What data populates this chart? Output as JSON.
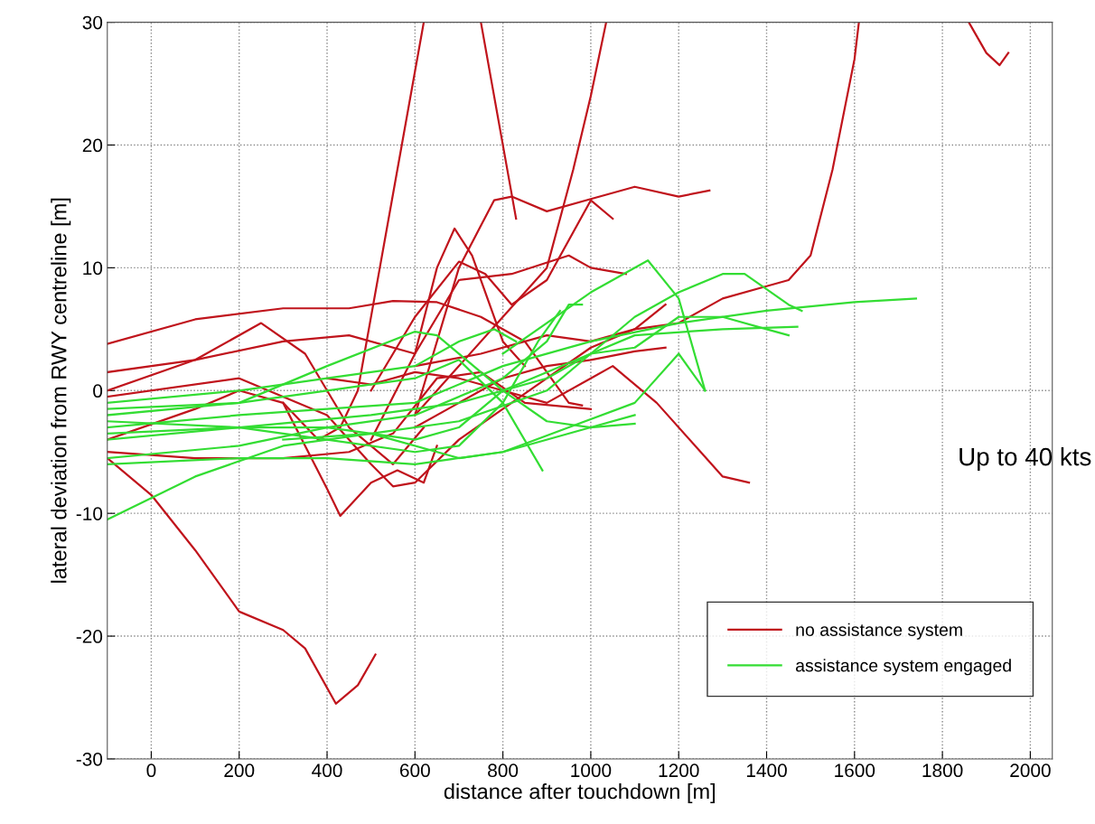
{
  "chart_data": {
    "type": "line",
    "xlabel": "distance after touchdown [m]",
    "ylabel": "lateral deviation from RWY centreline [m]",
    "xlim": [
      -100,
      2050
    ],
    "xticks": [
      0,
      200,
      400,
      600,
      800,
      1000,
      1200,
      1400,
      1600,
      1800,
      2000
    ],
    "ylim": [
      -30,
      30
    ],
    "yticks": [
      -30,
      -20,
      -10,
      0,
      10,
      20,
      30
    ],
    "grid": true,
    "legend": "bottom right",
    "annotations": [
      "Up to 40 kts"
    ],
    "series": [
      {
        "name": "no assistance system",
        "color": "#c0141c",
        "x": [
          -100,
          0,
          100,
          200,
          300,
          350,
          420,
          470,
          510
        ],
        "values": [
          -5.5,
          -8.5,
          -13,
          -18,
          -19.5,
          -21,
          -25.5,
          -24,
          -21.5
        ]
      },
      {
        "color": "#c0141c",
        "x": [
          300,
          380,
          430,
          470,
          520,
          570,
          620
        ],
        "values": [
          -1,
          -4,
          -3,
          0,
          10,
          20,
          30
        ]
      },
      {
        "color": "#c0141c",
        "x": [
          750,
          790,
          830
        ],
        "values": [
          30,
          22,
          14
        ]
      },
      {
        "color": "#c0141c",
        "x": [
          600,
          700,
          800,
          900,
          960,
          1000,
          1035
        ],
        "values": [
          -2,
          2,
          6,
          10,
          18,
          24,
          30
        ]
      },
      {
        "color": "#c0141c",
        "x": [
          600,
          750,
          900,
          1000,
          1100,
          1200,
          1300,
          1400,
          1450,
          1500,
          1550,
          1600,
          1610
        ],
        "values": [
          2,
          3,
          4.5,
          4,
          5,
          5.5,
          7.5,
          8.5,
          9,
          11,
          18,
          27,
          30
        ]
      },
      {
        "color": "#c0141c",
        "x": [
          1860,
          1900,
          1930,
          1950
        ],
        "values": [
          30,
          27.5,
          26.5,
          27.5
        ]
      },
      {
        "color": "#c0141c",
        "x": [
          -100,
          100,
          300,
          450,
          550,
          650,
          750,
          850,
          950,
          980
        ],
        "values": [
          3.8,
          5.8,
          6.7,
          6.7,
          7.3,
          7.2,
          6,
          4,
          -1,
          -1.2
        ]
      },
      {
        "color": "#c0141c",
        "x": [
          600,
          700,
          780,
          820,
          900,
          1000,
          1100,
          1200,
          1270
        ],
        "values": [
          -2,
          10,
          15.5,
          15.8,
          14.6,
          15.6,
          16.6,
          15.8,
          16.3
        ]
      },
      {
        "color": "#c0141c",
        "x": [
          500,
          600,
          650,
          690,
          730,
          800,
          850
        ],
        "values": [
          -4,
          3,
          10,
          13.2,
          11,
          4,
          2
        ]
      },
      {
        "color": "#c0141c",
        "x": [
          500,
          600,
          700,
          760,
          820,
          900,
          1000,
          1050
        ],
        "values": [
          0,
          6,
          10.5,
          9.5,
          7,
          9,
          15.5,
          14
        ]
      },
      {
        "color": "#c0141c",
        "x": [
          -100,
          100,
          250,
          350,
          450,
          550,
          620
        ],
        "values": [
          1.5,
          2.5,
          5.5,
          3,
          -3,
          -6,
          -3
        ]
      },
      {
        "color": "#c0141c",
        "x": [
          -100,
          100,
          300,
          450,
          600,
          700,
          820,
          950,
          1000,
          1080
        ],
        "values": [
          0,
          2.5,
          4,
          4.5,
          3,
          9,
          9.5,
          11,
          10,
          9.5
        ]
      },
      {
        "color": "#c0141c",
        "x": [
          -100,
          100,
          300,
          450,
          550,
          650,
          750,
          850,
          1000
        ],
        "values": [
          -5,
          -5.5,
          -5.5,
          -5,
          -3.5,
          1,
          1.5,
          -1,
          -1.5
        ]
      },
      {
        "color": "#c0141c",
        "x": [
          400,
          500,
          600,
          700,
          800,
          900,
          1000,
          1050,
          1150,
          1250,
          1300,
          1360
        ],
        "values": [
          1,
          0.5,
          1.5,
          1,
          0,
          -1,
          1,
          2,
          -1,
          -5,
          -7,
          -7.5
        ]
      },
      {
        "color": "#c0141c",
        "x": [
          600,
          700,
          800,
          900,
          1000,
          1100,
          1170
        ],
        "values": [
          -3,
          -1,
          1,
          2,
          2.5,
          3.2,
          3.5
        ]
      },
      {
        "color": "#c0141c",
        "x": [
          -100,
          100,
          200,
          300,
          400,
          430,
          500,
          560,
          620,
          650
        ],
        "values": [
          -4,
          -1.5,
          0,
          -1,
          -8,
          -10.2,
          -7.5,
          -6.5,
          -7.5,
          -4.5
        ]
      },
      {
        "color": "#c0141c",
        "x": [
          -100,
          200,
          400,
          500,
          550,
          600,
          700,
          900,
          1000,
          1100,
          1170
        ],
        "values": [
          -0.5,
          1,
          -2,
          -6,
          -7.8,
          -7.5,
          -4,
          1,
          3.5,
          5,
          7
        ]
      },
      {
        "name": "assistance system engaged",
        "color": "#33dd33",
        "x": [
          -100,
          100,
          300,
          500,
          700,
          900,
          1000,
          1100,
          1200,
          1300,
          1350,
          1450,
          1480
        ],
        "values": [
          -10.5,
          -7,
          -4.5,
          -3.5,
          -2.5,
          0,
          3,
          6,
          8,
          9.5,
          9.5,
          7,
          6.5
        ]
      },
      {
        "color": "#33dd33",
        "x": [
          -100,
          200,
          400,
          600,
          800,
          950,
          1100,
          1200,
          1260
        ],
        "values": [
          -6,
          -5.5,
          -5.5,
          -6,
          -5,
          -3,
          -1,
          3,
          0
        ]
      },
      {
        "color": "#33dd33",
        "x": [
          800,
          1000,
          1130,
          1200,
          1260
        ],
        "values": [
          3,
          8,
          10.6,
          7.5,
          0
        ]
      },
      {
        "color": "#33dd33",
        "x": [
          -100,
          200,
          400,
          600,
          650,
          800,
          900,
          1000,
          1100
        ],
        "values": [
          -2,
          -1,
          2,
          4.8,
          4.5,
          0,
          -2.5,
          -3,
          -2.7
        ]
      },
      {
        "color": "#33dd33",
        "x": [
          -100,
          200,
          400,
          600,
          800,
          1000,
          1200,
          1400,
          1600,
          1740
        ],
        "values": [
          -3,
          -2,
          -1.5,
          -1,
          2,
          4,
          5.5,
          6.5,
          7.2,
          7.5
        ]
      },
      {
        "color": "#33dd33",
        "x": [
          -100,
          200,
          400,
          600,
          700,
          800,
          900,
          1000,
          1100,
          1300,
          1470
        ],
        "values": [
          -4,
          -3,
          -3,
          -4,
          -3,
          0,
          1.5,
          3,
          4.5,
          5,
          5.2
        ]
      },
      {
        "color": "#33dd33",
        "x": [
          -100,
          200,
          400,
          600,
          700,
          800,
          890
        ],
        "values": [
          -1.5,
          -1,
          0,
          1,
          2.5,
          -1,
          -6.5
        ]
      },
      {
        "color": "#33dd33",
        "x": [
          -100,
          200,
          400,
          600,
          800,
          900,
          950,
          980
        ],
        "values": [
          -5.5,
          -4.5,
          -3,
          -2,
          1,
          4,
          7,
          7
        ]
      },
      {
        "color": "#33dd33",
        "x": [
          -100,
          200,
          400,
          600,
          700,
          800,
          880,
          930
        ],
        "values": [
          -2.5,
          -3,
          -4,
          -5,
          -4.5,
          -1,
          4,
          6.5
        ]
      },
      {
        "color": "#33dd33",
        "x": [
          -100,
          200,
          400,
          600,
          700,
          780,
          830
        ],
        "values": [
          -1,
          0,
          1,
          2,
          4,
          5,
          4
        ]
      },
      {
        "color": "#33dd33",
        "x": [
          -100,
          200,
          500,
          700,
          900,
          1000,
          1100,
          1200,
          1300,
          1400,
          1450
        ],
        "values": [
          -3.5,
          -3,
          -2,
          -1,
          1,
          3,
          3.5,
          6,
          6,
          5,
          4.5
        ]
      },
      {
        "color": "#33dd33",
        "x": [
          300,
          500,
          700,
          800,
          1000,
          1100
        ],
        "values": [
          -4,
          -3.5,
          -5.5,
          -5,
          -3,
          -2
        ]
      }
    ]
  }
}
